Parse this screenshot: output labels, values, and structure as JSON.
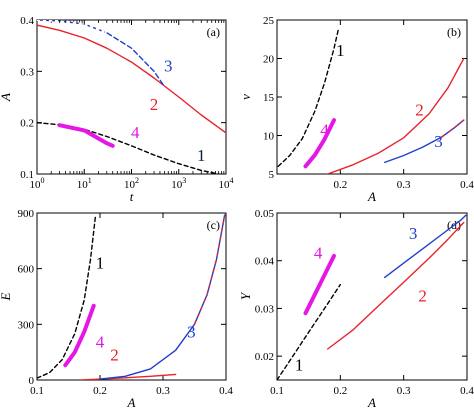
{
  "chart_data": [
    {
      "type": "line",
      "panel_label": "(a)",
      "xlabel": "t",
      "ylabel": "A",
      "xscale": "log",
      "xlim": [
        1,
        10000
      ],
      "ylim": [
        0.1,
        0.4
      ],
      "xticks": [
        1,
        10,
        100,
        1000,
        10000
      ],
      "xtick_labels": [
        {
          "base": "10",
          "exp": "0"
        },
        {
          "base": "10",
          "exp": "1"
        },
        {
          "base": "10",
          "exp": "2"
        },
        {
          "base": "10",
          "exp": "3"
        },
        {
          "base": "10",
          "exp": "4"
        }
      ],
      "yticks": [
        0.1,
        0.2,
        0.3,
        0.4
      ],
      "ytick_labels": [
        "0.1",
        "0.2",
        "0.3",
        "0.4"
      ],
      "series": [
        {
          "name": "1",
          "color": "#000000",
          "dash": "4,3",
          "x": [
            1,
            3,
            10,
            30,
            100,
            300,
            1000,
            3000,
            7000
          ],
          "y": [
            0.2,
            0.196,
            0.187,
            0.173,
            0.155,
            0.137,
            0.12,
            0.107,
            0.1
          ]
        },
        {
          "name": "2",
          "color": "#e8232a",
          "dash": "",
          "x": [
            1,
            3,
            10,
            30,
            100,
            300,
            1000,
            3000,
            10000
          ],
          "y": [
            0.39,
            0.38,
            0.365,
            0.345,
            0.318,
            0.287,
            0.25,
            0.215,
            0.18
          ]
        },
        {
          "name": "3",
          "color": "#1f3fcc",
          "dash": "5,3",
          "dash_until_x": 30,
          "x": [
            1,
            3,
            10,
            30,
            100,
            300,
            500
          ],
          "y": [
            0.4,
            0.398,
            0.392,
            0.375,
            0.345,
            0.3,
            0.27
          ]
        },
        {
          "name": "4",
          "color": "#e617e6",
          "dash": "",
          "thick": true,
          "x": [
            3,
            10,
            30,
            40
          ],
          "y": [
            0.195,
            0.185,
            0.16,
            0.155
          ]
        }
      ],
      "curve_labels": [
        {
          "text": "1",
          "x": 3000,
          "y": 0.125,
          "color": "#0b1a4a"
        },
        {
          "text": "2",
          "x": 300,
          "y": 0.225,
          "color": "#e8232a"
        },
        {
          "text": "3",
          "x": 600,
          "y": 0.3,
          "color": "#1f3fcc"
        },
        {
          "text": "4",
          "x": 120,
          "y": 0.17,
          "color": "#e617e6"
        }
      ]
    },
    {
      "type": "line",
      "panel_label": "(b)",
      "xlabel": "A",
      "ylabel": "ν",
      "xlim": [
        0.1,
        0.4
      ],
      "ylim": [
        5,
        25
      ],
      "xticks": [
        0.1,
        0.2,
        0.3,
        0.4
      ],
      "xtick_labels": [
        "",
        "0.2",
        "0.3",
        "0.4"
      ],
      "yticks": [
        5,
        10,
        15,
        20,
        25
      ],
      "ytick_labels": [
        "5",
        "10",
        "15",
        "20",
        "25"
      ],
      "series": [
        {
          "name": "1",
          "color": "#000000",
          "dash": "4,3",
          "x": [
            0.102,
            0.12,
            0.14,
            0.16,
            0.175,
            0.19,
            0.197
          ],
          "y": [
            6.0,
            7.4,
            9.6,
            13.2,
            16.8,
            21.3,
            23.8
          ]
        },
        {
          "name": "2",
          "color": "#e8232a",
          "dash": "",
          "x": [
            0.18,
            0.22,
            0.26,
            0.3,
            0.34,
            0.37,
            0.395
          ],
          "y": [
            5.0,
            6.2,
            7.7,
            9.7,
            12.8,
            16.2,
            20.0
          ]
        },
        {
          "name": "3",
          "color": "#1f3fcc",
          "dash": "",
          "dash_color": "#e8232a",
          "dash_from_x": 0.35,
          "x": [
            0.27,
            0.3,
            0.33,
            0.36,
            0.38,
            0.395
          ],
          "y": [
            6.5,
            7.4,
            8.5,
            9.8,
            11.0,
            12.0
          ]
        },
        {
          "name": "4",
          "color": "#e617e6",
          "dash": "",
          "thick": true,
          "x": [
            0.145,
            0.16,
            0.175,
            0.19
          ],
          "y": [
            6.0,
            7.5,
            9.5,
            12.0
          ]
        }
      ],
      "curve_labels": [
        {
          "text": "1",
          "x": 0.2,
          "y": 20.3,
          "color": "#000000"
        },
        {
          "text": "2",
          "x": 0.325,
          "y": 12.6,
          "color": "#e8232a"
        },
        {
          "text": "3",
          "x": 0.355,
          "y": 8.5,
          "color": "#1f3fcc"
        },
        {
          "text": "4",
          "x": 0.175,
          "y": 10.0,
          "color": "#e617e6"
        }
      ]
    },
    {
      "type": "line",
      "panel_label": "(c)",
      "xlabel": "A",
      "ylabel": "E",
      "xlim": [
        0.1,
        0.4
      ],
      "ylim": [
        0,
        900
      ],
      "xticks": [
        0.1,
        0.2,
        0.3,
        0.4
      ],
      "xtick_labels": [
        "0.1",
        "0.2",
        "0.3",
        "0.4"
      ],
      "yticks": [
        0,
        300,
        600,
        900
      ],
      "ytick_labels": [
        "0",
        "300",
        "600",
        "900"
      ],
      "series": [
        {
          "name": "1",
          "color": "#000000",
          "dash": "4,3",
          "x": [
            0.1,
            0.12,
            0.14,
            0.16,
            0.175,
            0.185,
            0.193
          ],
          "y": [
            10,
            40,
            110,
            250,
            430,
            650,
            890
          ]
        },
        {
          "name": "2",
          "color": "#e8232a",
          "dash": "",
          "x": [
            0.17,
            0.2,
            0.24,
            0.28,
            0.32
          ],
          "y": [
            0,
            5,
            12,
            20,
            30
          ]
        },
        {
          "name": "3",
          "color": "#1f3fcc",
          "dash": "",
          "dash_color": "#e8232a",
          "dash_from_x": 0.33,
          "x": [
            0.2,
            0.24,
            0.28,
            0.32,
            0.35,
            0.37,
            0.385,
            0.398
          ],
          "y": [
            5,
            20,
            60,
            160,
            300,
            460,
            650,
            890
          ]
        },
        {
          "name": "4",
          "color": "#e617e6",
          "dash": "",
          "thick": true,
          "x": [
            0.145,
            0.16,
            0.175,
            0.19
          ],
          "y": [
            80,
            150,
            260,
            400
          ]
        }
      ],
      "curve_labels": [
        {
          "text": "1",
          "x": 0.2,
          "y": 600,
          "color": "#000000"
        },
        {
          "text": "2",
          "x": 0.223,
          "y": 105,
          "color": "#e8232a"
        },
        {
          "text": "3",
          "x": 0.345,
          "y": 230,
          "color": "#1f3fcc"
        },
        {
          "text": "4",
          "x": 0.2,
          "y": 175,
          "color": "#e617e6"
        }
      ]
    },
    {
      "type": "line",
      "panel_label": "(d)",
      "xlabel": "A",
      "ylabel": "Y",
      "xlim": [
        0.1,
        0.4
      ],
      "ylim": [
        0.015,
        0.05
      ],
      "xticks": [
        0.1,
        0.2,
        0.3,
        0.4
      ],
      "xtick_labels": [
        "0.1",
        "0.2",
        "0.3",
        "0.4"
      ],
      "yticks": [
        0.02,
        0.03,
        0.04,
        0.05
      ],
      "ytick_labels": [
        "0.02",
        "0.03",
        "0.04",
        "0.05"
      ],
      "series": [
        {
          "name": "1",
          "color": "#000000",
          "dash": "4,3",
          "x": [
            0.1,
            0.12,
            0.14,
            0.16,
            0.18,
            0.2
          ],
          "y": [
            0.015,
            0.019,
            0.023,
            0.027,
            0.031,
            0.035
          ]
        },
        {
          "name": "2",
          "color": "#e8232a",
          "dash": "",
          "x": [
            0.18,
            0.22,
            0.26,
            0.3,
            0.34,
            0.37,
            0.395
          ],
          "y": [
            0.0215,
            0.0255,
            0.0305,
            0.0355,
            0.0405,
            0.0445,
            0.048
          ]
        },
        {
          "name": "3",
          "color": "#1f3fcc",
          "dash": "",
          "x": [
            0.27,
            0.3,
            0.33,
            0.36,
            0.39,
            0.398
          ],
          "y": [
            0.0365,
            0.0395,
            0.0425,
            0.0455,
            0.0485,
            0.0495
          ]
        },
        {
          "name": "4",
          "color": "#e617e6",
          "dash": "",
          "thick": true,
          "x": [
            0.145,
            0.16,
            0.175,
            0.19
          ],
          "y": [
            0.029,
            0.033,
            0.037,
            0.041
          ]
        }
      ],
      "curve_labels": [
        {
          "text": "1",
          "x": 0.135,
          "y": 0.017,
          "color": "#000000"
        },
        {
          "text": "2",
          "x": 0.33,
          "y": 0.0315,
          "color": "#e8232a"
        },
        {
          "text": "3",
          "x": 0.315,
          "y": 0.0445,
          "color": "#1f3fcc"
        },
        {
          "text": "4",
          "x": 0.165,
          "y": 0.0405,
          "color": "#e617e6"
        }
      ]
    }
  ]
}
